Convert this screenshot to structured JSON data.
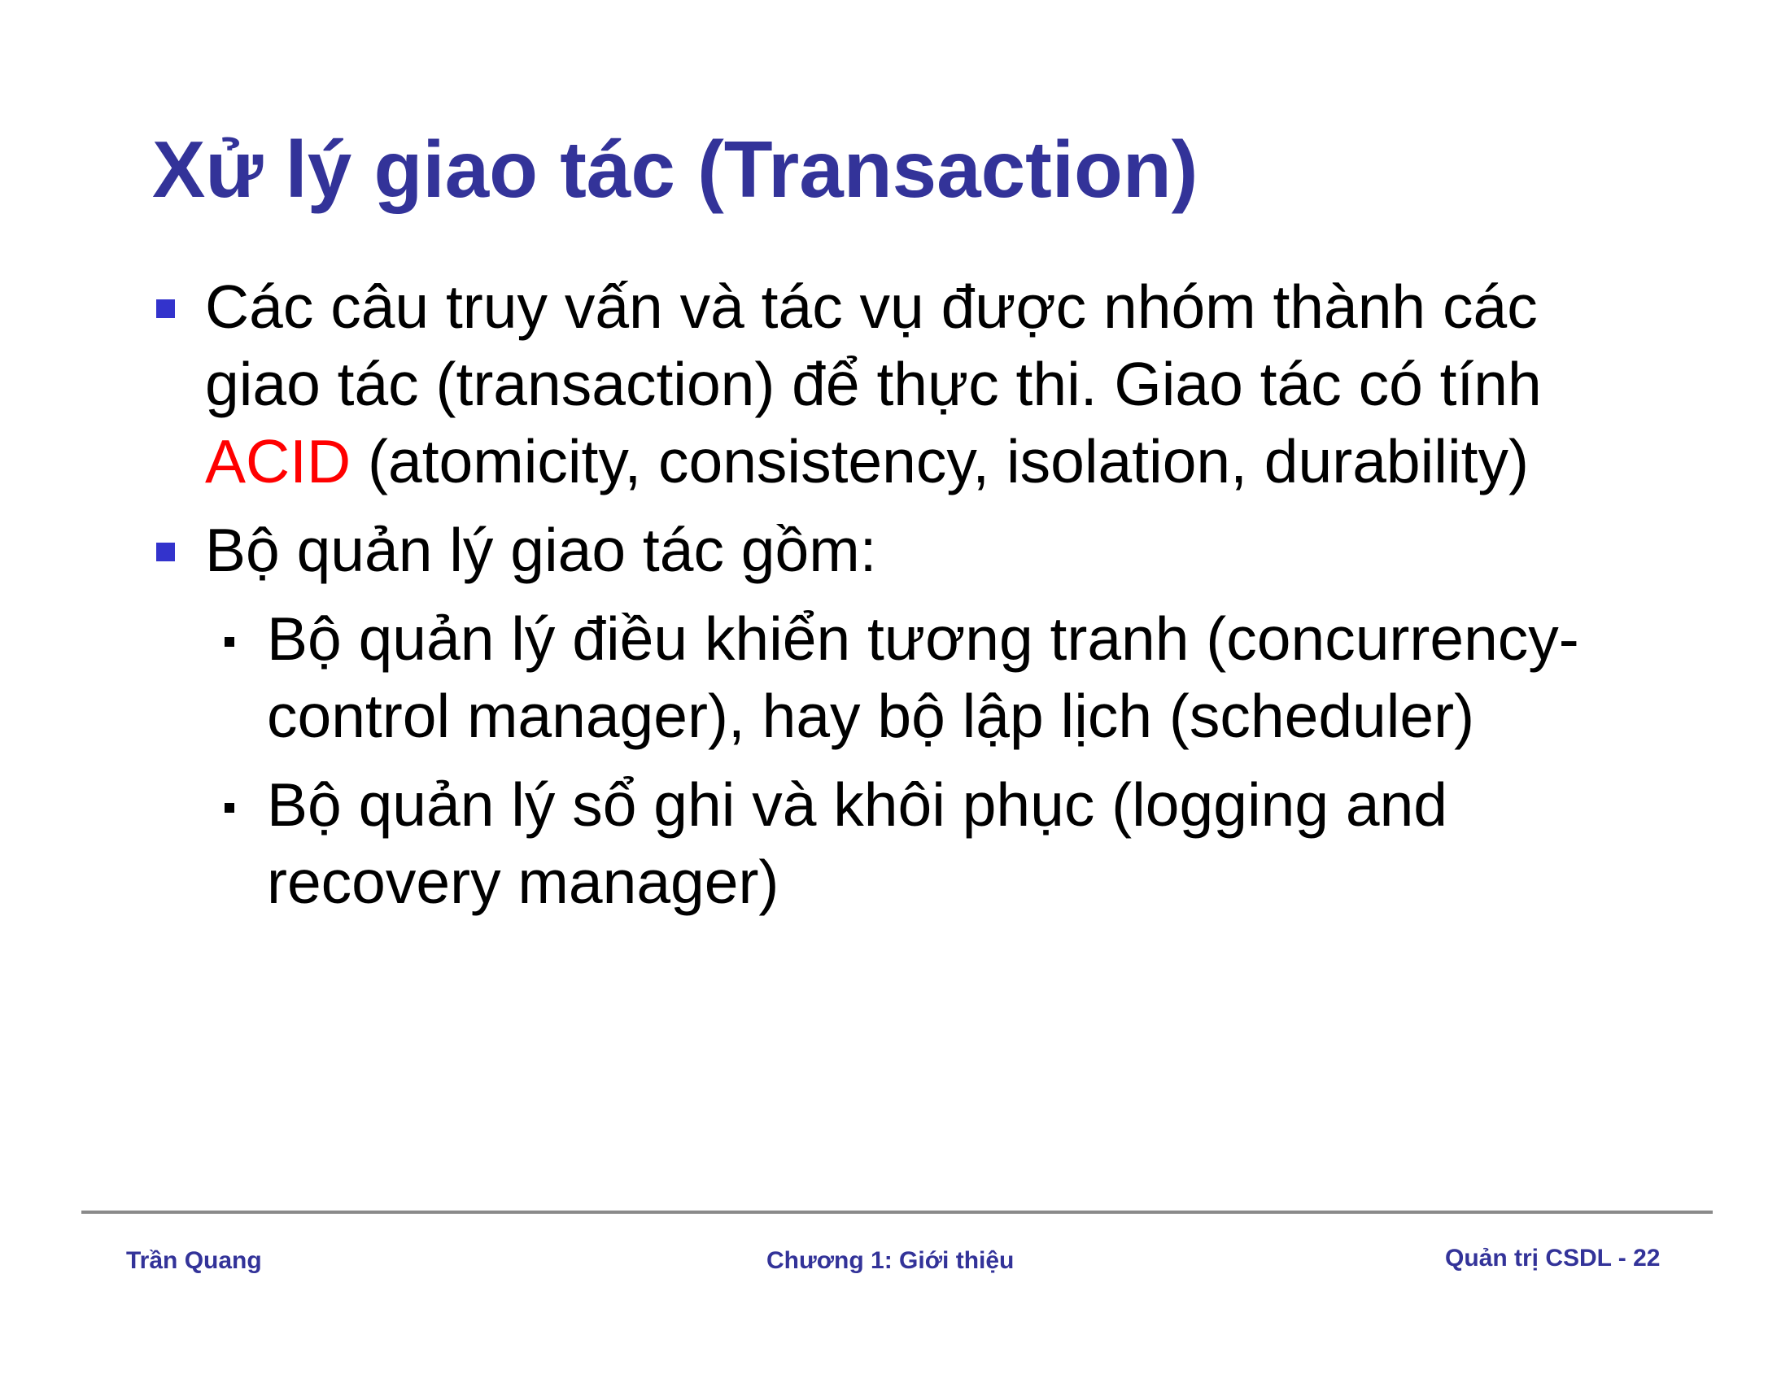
{
  "slide": {
    "title": "Xử lý giao tác (Transaction)",
    "bullets": [
      {
        "text_before": "Các câu truy vấn và tác vụ được nhóm thành các giao tác (transaction) để thực thi. Giao tác có tính ",
        "highlight": "ACID",
        "text_after": " (atomicity, consistency, isolation, durability)"
      },
      {
        "text": "Bộ quản lý giao tác gồm:",
        "sub_items": [
          "Bộ quản lý điều khiển tương tranh (concurrency-control manager), hay bộ lập lịch (scheduler)",
          "Bộ quản lý sổ ghi và khôi phục (logging and recovery manager)"
        ]
      }
    ]
  },
  "footer": {
    "author": "Trần Quang",
    "chapter": "Chương 1: Giới thiệu",
    "page": "Quản trị CSDL - 22"
  },
  "colors": {
    "title": "#333399",
    "highlight": "#ff0000",
    "bullet": "#3333cc",
    "footer_text": "#333399",
    "rule": "#8a8a8a"
  }
}
